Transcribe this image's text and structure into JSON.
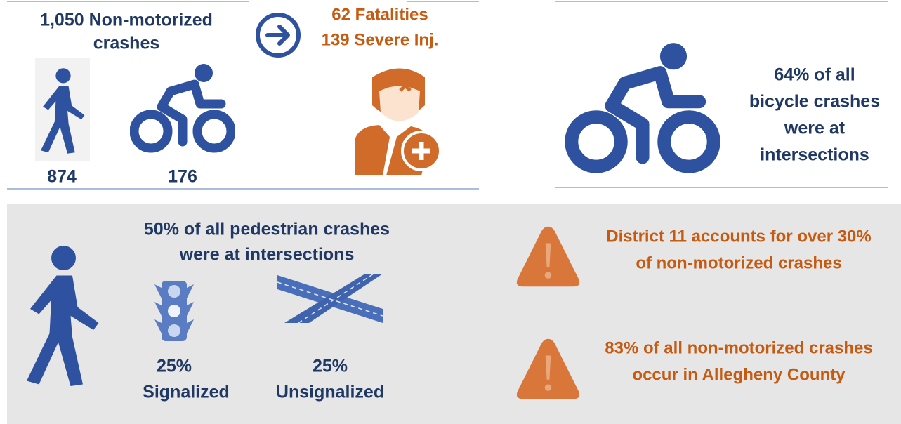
{
  "top_left": {
    "headline": [
      "1,050 Non-motorized",
      "crashes"
    ],
    "outcome": [
      "62 Fatalities",
      "139 Severe Inj."
    ],
    "pedestrian_count": "874",
    "bicycle_count": "176"
  },
  "top_right": {
    "lines": [
      "64% of all",
      "bicycle crashes",
      "were at",
      "intersections"
    ]
  },
  "bottom_left": {
    "headline": [
      "50% of all pedestrian crashes",
      "were at intersections"
    ],
    "signalized": {
      "value": "25%",
      "label": "Signalized"
    },
    "unsignalized": {
      "value": "25%",
      "label": "Unsignalized"
    }
  },
  "bottom_right": {
    "notes": [
      [
        "District 11 accounts for over 30%",
        "of non-motorized crashes"
      ],
      [
        "83% of all non-motorized crashes",
        "occur in Allegheny County"
      ]
    ]
  }
}
